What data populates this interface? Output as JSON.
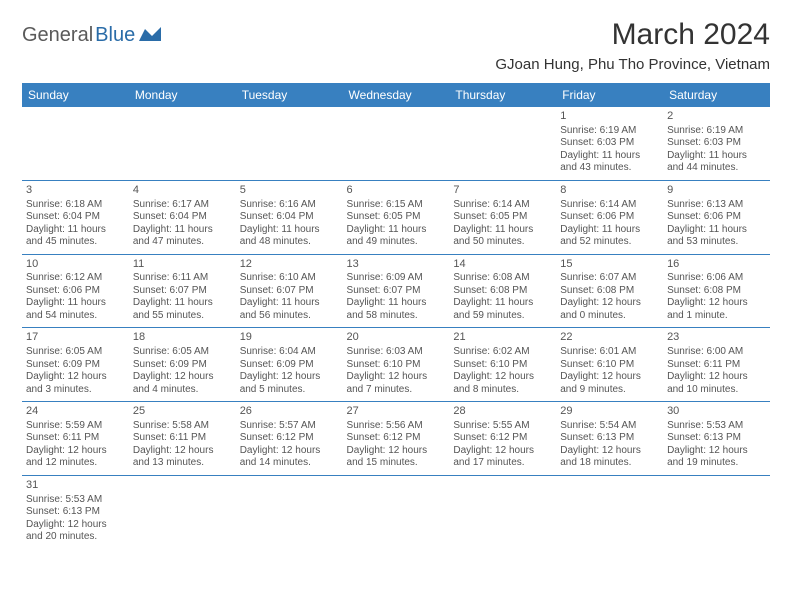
{
  "logo": {
    "part1": "General",
    "part2": "Blue"
  },
  "title": "March 2024",
  "location": "GJoan Hung, Phu Tho Province, Vietnam",
  "colors": {
    "header_bg": "#3880c0",
    "header_fg": "#ffffff",
    "border": "#3880c0",
    "text": "#555555",
    "logo_gray": "#5a5a5a",
    "logo_blue": "#2a6ca8"
  },
  "weekdays": [
    "Sunday",
    "Monday",
    "Tuesday",
    "Wednesday",
    "Thursday",
    "Friday",
    "Saturday"
  ],
  "weeks": [
    [
      null,
      null,
      null,
      null,
      null,
      {
        "day": "1",
        "sunrise": "Sunrise: 6:19 AM",
        "sunset": "Sunset: 6:03 PM",
        "daylight": "Daylight: 11 hours and 43 minutes."
      },
      {
        "day": "2",
        "sunrise": "Sunrise: 6:19 AM",
        "sunset": "Sunset: 6:03 PM",
        "daylight": "Daylight: 11 hours and 44 minutes."
      }
    ],
    [
      {
        "day": "3",
        "sunrise": "Sunrise: 6:18 AM",
        "sunset": "Sunset: 6:04 PM",
        "daylight": "Daylight: 11 hours and 45 minutes."
      },
      {
        "day": "4",
        "sunrise": "Sunrise: 6:17 AM",
        "sunset": "Sunset: 6:04 PM",
        "daylight": "Daylight: 11 hours and 47 minutes."
      },
      {
        "day": "5",
        "sunrise": "Sunrise: 6:16 AM",
        "sunset": "Sunset: 6:04 PM",
        "daylight": "Daylight: 11 hours and 48 minutes."
      },
      {
        "day": "6",
        "sunrise": "Sunrise: 6:15 AM",
        "sunset": "Sunset: 6:05 PM",
        "daylight": "Daylight: 11 hours and 49 minutes."
      },
      {
        "day": "7",
        "sunrise": "Sunrise: 6:14 AM",
        "sunset": "Sunset: 6:05 PM",
        "daylight": "Daylight: 11 hours and 50 minutes."
      },
      {
        "day": "8",
        "sunrise": "Sunrise: 6:14 AM",
        "sunset": "Sunset: 6:06 PM",
        "daylight": "Daylight: 11 hours and 52 minutes."
      },
      {
        "day": "9",
        "sunrise": "Sunrise: 6:13 AM",
        "sunset": "Sunset: 6:06 PM",
        "daylight": "Daylight: 11 hours and 53 minutes."
      }
    ],
    [
      {
        "day": "10",
        "sunrise": "Sunrise: 6:12 AM",
        "sunset": "Sunset: 6:06 PM",
        "daylight": "Daylight: 11 hours and 54 minutes."
      },
      {
        "day": "11",
        "sunrise": "Sunrise: 6:11 AM",
        "sunset": "Sunset: 6:07 PM",
        "daylight": "Daylight: 11 hours and 55 minutes."
      },
      {
        "day": "12",
        "sunrise": "Sunrise: 6:10 AM",
        "sunset": "Sunset: 6:07 PM",
        "daylight": "Daylight: 11 hours and 56 minutes."
      },
      {
        "day": "13",
        "sunrise": "Sunrise: 6:09 AM",
        "sunset": "Sunset: 6:07 PM",
        "daylight": "Daylight: 11 hours and 58 minutes."
      },
      {
        "day": "14",
        "sunrise": "Sunrise: 6:08 AM",
        "sunset": "Sunset: 6:08 PM",
        "daylight": "Daylight: 11 hours and 59 minutes."
      },
      {
        "day": "15",
        "sunrise": "Sunrise: 6:07 AM",
        "sunset": "Sunset: 6:08 PM",
        "daylight": "Daylight: 12 hours and 0 minutes."
      },
      {
        "day": "16",
        "sunrise": "Sunrise: 6:06 AM",
        "sunset": "Sunset: 6:08 PM",
        "daylight": "Daylight: 12 hours and 1 minute."
      }
    ],
    [
      {
        "day": "17",
        "sunrise": "Sunrise: 6:05 AM",
        "sunset": "Sunset: 6:09 PM",
        "daylight": "Daylight: 12 hours and 3 minutes."
      },
      {
        "day": "18",
        "sunrise": "Sunrise: 6:05 AM",
        "sunset": "Sunset: 6:09 PM",
        "daylight": "Daylight: 12 hours and 4 minutes."
      },
      {
        "day": "19",
        "sunrise": "Sunrise: 6:04 AM",
        "sunset": "Sunset: 6:09 PM",
        "daylight": "Daylight: 12 hours and 5 minutes."
      },
      {
        "day": "20",
        "sunrise": "Sunrise: 6:03 AM",
        "sunset": "Sunset: 6:10 PM",
        "daylight": "Daylight: 12 hours and 7 minutes."
      },
      {
        "day": "21",
        "sunrise": "Sunrise: 6:02 AM",
        "sunset": "Sunset: 6:10 PM",
        "daylight": "Daylight: 12 hours and 8 minutes."
      },
      {
        "day": "22",
        "sunrise": "Sunrise: 6:01 AM",
        "sunset": "Sunset: 6:10 PM",
        "daylight": "Daylight: 12 hours and 9 minutes."
      },
      {
        "day": "23",
        "sunrise": "Sunrise: 6:00 AM",
        "sunset": "Sunset: 6:11 PM",
        "daylight": "Daylight: 12 hours and 10 minutes."
      }
    ],
    [
      {
        "day": "24",
        "sunrise": "Sunrise: 5:59 AM",
        "sunset": "Sunset: 6:11 PM",
        "daylight": "Daylight: 12 hours and 12 minutes."
      },
      {
        "day": "25",
        "sunrise": "Sunrise: 5:58 AM",
        "sunset": "Sunset: 6:11 PM",
        "daylight": "Daylight: 12 hours and 13 minutes."
      },
      {
        "day": "26",
        "sunrise": "Sunrise: 5:57 AM",
        "sunset": "Sunset: 6:12 PM",
        "daylight": "Daylight: 12 hours and 14 minutes."
      },
      {
        "day": "27",
        "sunrise": "Sunrise: 5:56 AM",
        "sunset": "Sunset: 6:12 PM",
        "daylight": "Daylight: 12 hours and 15 minutes."
      },
      {
        "day": "28",
        "sunrise": "Sunrise: 5:55 AM",
        "sunset": "Sunset: 6:12 PM",
        "daylight": "Daylight: 12 hours and 17 minutes."
      },
      {
        "day": "29",
        "sunrise": "Sunrise: 5:54 AM",
        "sunset": "Sunset: 6:13 PM",
        "daylight": "Daylight: 12 hours and 18 minutes."
      },
      {
        "day": "30",
        "sunrise": "Sunrise: 5:53 AM",
        "sunset": "Sunset: 6:13 PM",
        "daylight": "Daylight: 12 hours and 19 minutes."
      }
    ],
    [
      {
        "day": "31",
        "sunrise": "Sunrise: 5:53 AM",
        "sunset": "Sunset: 6:13 PM",
        "daylight": "Daylight: 12 hours and 20 minutes."
      },
      null,
      null,
      null,
      null,
      null,
      null
    ]
  ]
}
